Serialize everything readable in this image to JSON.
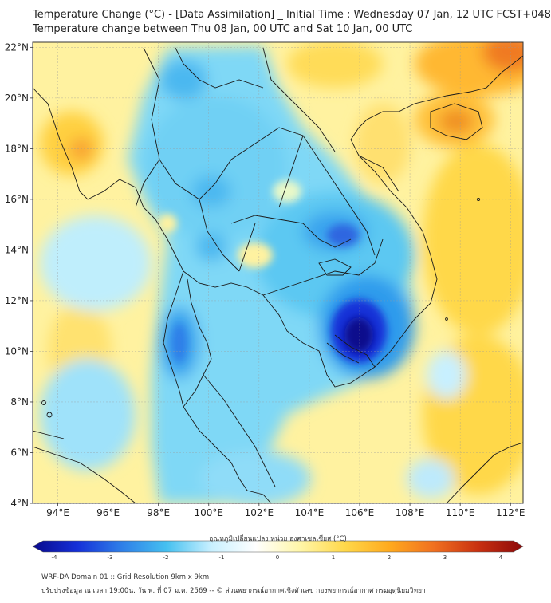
{
  "header": {
    "title_line1": "Temperature Change (°C) - [Data Assimilation] _ Initial Time : Wednesday 07 Jan, 12 UTC FCST+048",
    "title_line2": "Temperature change between Thu 08 Jan, 00 UTC and Sat 10 Jan, 00 UTC"
  },
  "map": {
    "lon_ticks": [
      "94°E",
      "96°E",
      "98°E",
      "100°E",
      "102°E",
      "104°E",
      "106°E",
      "108°E",
      "110°E",
      "112°E"
    ],
    "lat_ticks": [
      "22°N",
      "20°N",
      "18°N",
      "16°N",
      "14°N",
      "12°N",
      "10°N",
      "8°N",
      "6°N",
      "4°N"
    ],
    "lon_range": [
      93,
      112.5
    ],
    "lat_range": [
      4,
      22.2
    ]
  },
  "colorbar": {
    "label": "อุณหภูมิเปลี่ยนแปลง หน่วย องศาเซลเซียส (°C)",
    "ticks": [
      "-4",
      "-3",
      "-2",
      "-1",
      "0",
      "1",
      "2",
      "3",
      "4"
    ],
    "range": [
      -4,
      4
    ],
    "colors": [
      "#0a0a8c",
      "#1530d8",
      "#2f7fe8",
      "#45c0f0",
      "#c8f0ff",
      "#ffffff",
      "#fff6a8",
      "#ffd84a",
      "#ffaa1e",
      "#f07020",
      "#c83010",
      "#8c0a0a"
    ]
  },
  "footer": {
    "line1": "WRF-DA Domain 01 :: Grid Resolution 9km x 9km",
    "line2": "ปรับปรุงข้อมูล ณ เวลา 19:00น. วัน พ. ที่ 07 ม.ค. 2569 -- © ส่วนพยากรณ์อากาศเชิงตัวเลข กองพยากรณ์อากาศ กรมอุตุนิยมวิทยา"
  }
}
